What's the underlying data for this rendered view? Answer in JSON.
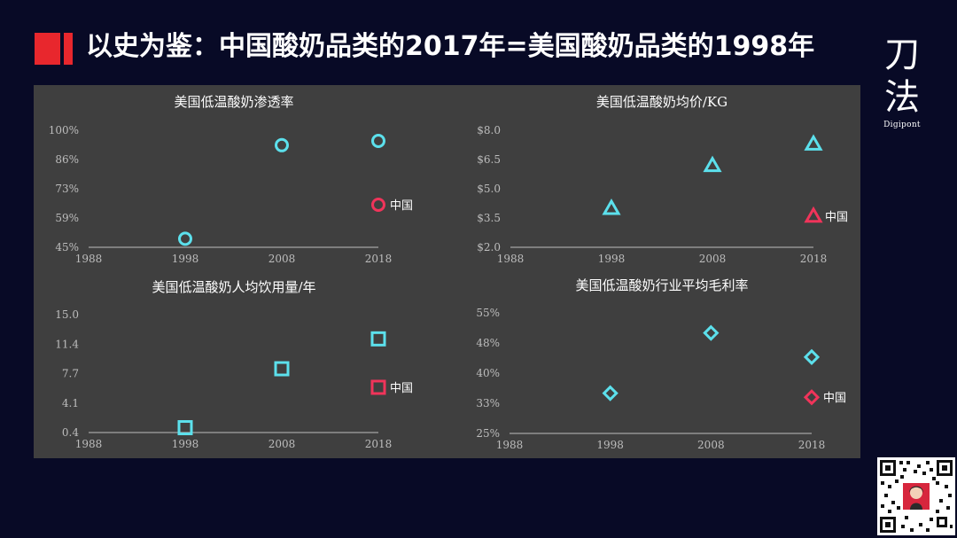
{
  "slide": {
    "title": "以史为鉴：中国酸奶品类的2017年=美国酸奶品类的1998年",
    "brand_char_1": "刀",
    "brand_char_2": "法",
    "brand_sub": "Digipont"
  },
  "colors": {
    "background": "#080a26",
    "panel": "#3f3f3f",
    "accent_red": "#e8272d",
    "us_series": "#5ce0ec",
    "china_series": "#f0345a",
    "axis": "#bdbdbd",
    "text": "#ffffff"
  },
  "chart_data": [
    {
      "type": "scatter",
      "title": "美国低温酸奶渗透率",
      "marker": "circle",
      "x_ticks": [
        "1988",
        "1998",
        "2008",
        "2018"
      ],
      "y_ticks": [
        "100%",
        "86%",
        "73%",
        "59%",
        "45%"
      ],
      "xlim": [
        1988,
        2018
      ],
      "ylim": [
        45,
        100
      ],
      "series": [
        {
          "points": [
            {
              "x": 1998,
              "y": 49
            },
            {
              "x": 2008,
              "y": 93
            },
            {
              "x": 2018,
              "y": 95
            }
          ]
        },
        {
          "name": "中国",
          "points": [
            {
              "x": 2018,
              "y": 65
            }
          ]
        }
      ]
    },
    {
      "type": "scatter",
      "title": "美国低温酸奶均价/KG",
      "marker": "triangle",
      "x_ticks": [
        "1988",
        "1998",
        "2008",
        "2018"
      ],
      "y_ticks": [
        "$8.0",
        "$6.5",
        "$5.0",
        "$3.5",
        "$2.0"
      ],
      "xlim": [
        1988,
        2018
      ],
      "ylim": [
        2.0,
        8.0
      ],
      "series": [
        {
          "points": [
            {
              "x": 1998,
              "y": 4.0
            },
            {
              "x": 2008,
              "y": 6.2
            },
            {
              "x": 2018,
              "y": 7.3
            }
          ]
        },
        {
          "name": "中国",
          "points": [
            {
              "x": 2018,
              "y": 3.6
            }
          ]
        }
      ]
    },
    {
      "type": "scatter",
      "title": "美国低温酸奶人均饮用量/年",
      "marker": "square",
      "x_ticks": [
        "1988",
        "1998",
        "2008",
        "2018"
      ],
      "y_ticks": [
        "15.0",
        "11.4",
        "7.7",
        "4.1",
        "0.4"
      ],
      "xlim": [
        1988,
        2018
      ],
      "ylim": [
        0.4,
        15.0
      ],
      "series": [
        {
          "points": [
            {
              "x": 1998,
              "y": 1.0
            },
            {
              "x": 2008,
              "y": 8.3
            },
            {
              "x": 2018,
              "y": 12.0
            }
          ]
        },
        {
          "name": "中国",
          "points": [
            {
              "x": 2018,
              "y": 6.0
            }
          ]
        }
      ]
    },
    {
      "type": "scatter",
      "title": "美国低温酸奶行业平均毛利率",
      "marker": "diamond",
      "x_ticks": [
        "1988",
        "1998",
        "2008",
        "2018"
      ],
      "y_ticks": [
        "55%",
        "48%",
        "40%",
        "33%",
        "25%"
      ],
      "xlim": [
        1988,
        2018
      ],
      "ylim": [
        25,
        55
      ],
      "series": [
        {
          "points": [
            {
              "x": 1998,
              "y": 35
            },
            {
              "x": 2008,
              "y": 50
            },
            {
              "x": 2018,
              "y": 44
            }
          ]
        },
        {
          "name": "中国",
          "points": [
            {
              "x": 2018,
              "y": 34
            }
          ]
        }
      ]
    }
  ]
}
